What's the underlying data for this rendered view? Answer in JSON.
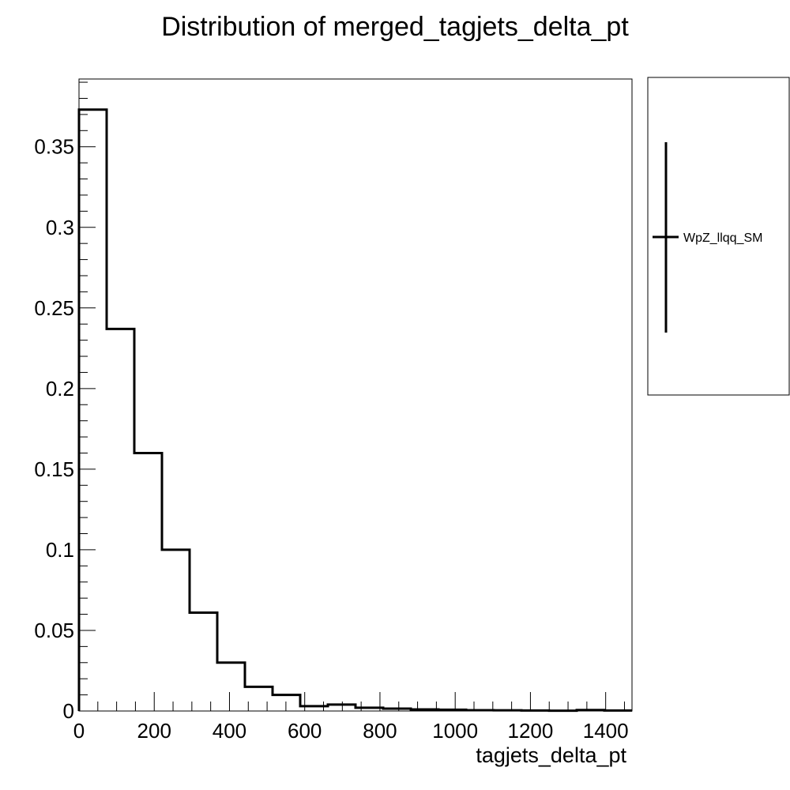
{
  "chart_data": {
    "type": "histogram",
    "title": "Distribution of merged_tagjets_delta_pt",
    "xlabel": "tagjets_delta_pt",
    "ylabel": "",
    "xlim": [
      0,
      1470
    ],
    "ylim": [
      0,
      0.392
    ],
    "x_ticks": [
      {
        "value": 0,
        "label": "0"
      },
      {
        "value": 200,
        "label": "200"
      },
      {
        "value": 400,
        "label": "400"
      },
      {
        "value": 600,
        "label": "600"
      },
      {
        "value": 800,
        "label": "800"
      },
      {
        "value": 1000,
        "label": "1000"
      },
      {
        "value": 1200,
        "label": "1200"
      },
      {
        "value": 1400,
        "label": "1400"
      }
    ],
    "y_ticks": [
      {
        "value": 0,
        "label": "0"
      },
      {
        "value": 0.05,
        "label": "0.05"
      },
      {
        "value": 0.1,
        "label": "0.1"
      },
      {
        "value": 0.15,
        "label": "0.15"
      },
      {
        "value": 0.2,
        "label": "0.2"
      },
      {
        "value": 0.25,
        "label": "0.25"
      },
      {
        "value": 0.3,
        "label": "0.3"
      },
      {
        "value": 0.35,
        "label": "0.35"
      }
    ],
    "bin_edges": [
      0,
      73.5,
      147,
      220.5,
      294,
      367.5,
      441,
      514.5,
      588,
      661.5,
      735,
      808.5,
      882,
      955.5,
      1029,
      1102.5,
      1176,
      1249.5,
      1323,
      1396.5,
      1470
    ],
    "series": [
      {
        "name": "WpZ_llqq_SM",
        "color": "#000000",
        "values": [
          0.373,
          0.237,
          0.16,
          0.1,
          0.061,
          0.03,
          0.015,
          0.01,
          0.003,
          0.004,
          0.002,
          0.0015,
          0.001,
          0.0008,
          0.0005,
          0.0004,
          0.0003,
          0.0002,
          0.0006,
          0.0003
        ]
      }
    ],
    "legend": {
      "position": "right-outside-top",
      "entries": [
        "WpZ_llqq_SM"
      ]
    },
    "grid": false
  }
}
